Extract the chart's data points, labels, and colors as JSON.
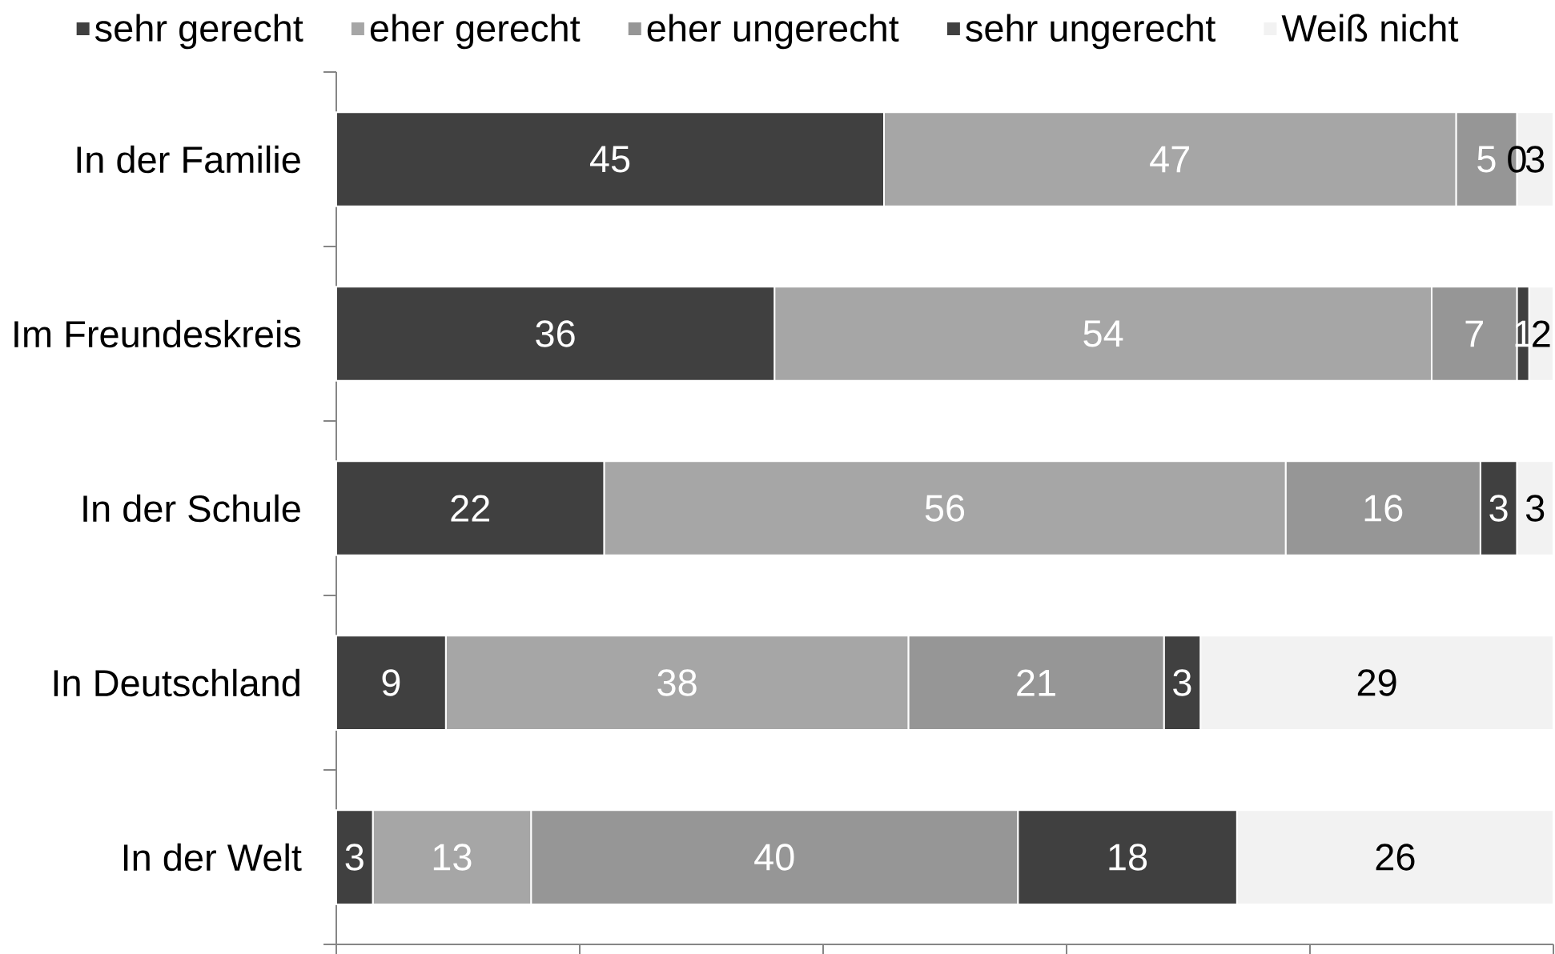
{
  "chart_data": {
    "type": "bar",
    "orientation": "horizontal",
    "stacked": true,
    "categories": [
      "In der Familie",
      "Im Freundeskreis",
      "In der Schule",
      "In Deutschland",
      "In der Welt"
    ],
    "series": [
      {
        "name": "sehr gerecht",
        "color": "#404040",
        "values": [
          45,
          36,
          22,
          9,
          3
        ]
      },
      {
        "name": "eher gerecht",
        "color": "#a6a6a6",
        "values": [
          47,
          54,
          56,
          38,
          13
        ]
      },
      {
        "name": "eher ungerecht",
        "color": "#969696",
        "values": [
          5,
          7,
          16,
          21,
          40
        ]
      },
      {
        "name": "sehr ungerecht",
        "color": "#404040",
        "values": [
          0,
          1,
          3,
          3,
          18
        ]
      },
      {
        "name": "Weiß nicht",
        "color": "#f2f2f2",
        "values": [
          3,
          2,
          3,
          29,
          26
        ]
      }
    ],
    "tick_labels": "y",
    "data_labels": true,
    "legend": "top",
    "grid": false
  }
}
